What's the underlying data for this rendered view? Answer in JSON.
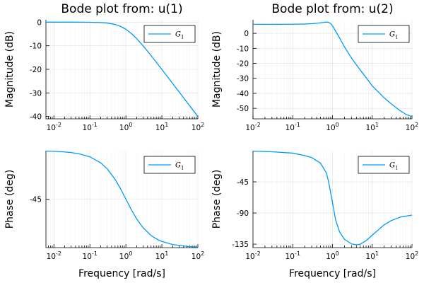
{
  "chart_data": [
    {
      "type": "line",
      "panel": "magnitude-u1",
      "title": "Bode plot from: u(1)",
      "xlabel": "",
      "ylabel": "Magnitude (dB)",
      "xscale": "log",
      "xlim": [
        0.006,
        100
      ],
      "ylim": [
        -41,
        1
      ],
      "xticks": [
        {
          "base": "10",
          "exp": "-2",
          "value": 0.01
        },
        {
          "base": "10",
          "exp": "-1",
          "value": 0.1
        },
        {
          "base": "10",
          "exp": "0",
          "value": 1
        },
        {
          "base": "10",
          "exp": "1",
          "value": 10
        },
        {
          "base": "10",
          "exp": "2",
          "value": 100
        }
      ],
      "yticks": [
        {
          "label": "0",
          "value": 0
        },
        {
          "label": "-10",
          "value": -10
        },
        {
          "label": "-20",
          "value": -20
        },
        {
          "label": "-30",
          "value": -30
        },
        {
          "label": "-40",
          "value": -40
        }
      ],
      "grid": true,
      "legend": "top-right",
      "series": [
        {
          "name_main": "G",
          "name_sub": "1",
          "color": "#009AFA",
          "points": [
            [
              0.006,
              0.0
            ],
            [
              0.01,
              0.0
            ],
            [
              0.03,
              0.0
            ],
            [
              0.1,
              -0.04
            ],
            [
              0.2,
              -0.17
            ],
            [
              0.3,
              -0.37
            ],
            [
              0.5,
              -0.97
            ],
            [
              0.7,
              -1.74
            ],
            [
              1.0,
              -3.01
            ],
            [
              1.5,
              -5.12
            ],
            [
              2.0,
              -6.99
            ],
            [
              3.0,
              -10.0
            ],
            [
              5.0,
              -14.15
            ],
            [
              7.0,
              -17.0
            ],
            [
              10.0,
              -20.04
            ],
            [
              20.0,
              -26.03
            ],
            [
              30.0,
              -29.55
            ],
            [
              50.0,
              -33.98
            ],
            [
              70.0,
              -36.9
            ],
            [
              100.0,
              -40.0
            ]
          ]
        }
      ]
    },
    {
      "type": "line",
      "panel": "magnitude-u2",
      "title": "Bode plot from: u(2)",
      "xlabel": "",
      "ylabel": "Magnitude (dB)",
      "xscale": "log",
      "xlim": [
        0.01,
        100
      ],
      "ylim": [
        -57,
        9
      ],
      "xticks": [
        {
          "base": "10",
          "exp": "-2",
          "value": 0.01
        },
        {
          "base": "10",
          "exp": "-1",
          "value": 0.1
        },
        {
          "base": "10",
          "exp": "0",
          "value": 1
        },
        {
          "base": "10",
          "exp": "1",
          "value": 10
        },
        {
          "base": "10",
          "exp": "2",
          "value": 100
        }
      ],
      "yticks": [
        {
          "label": "0",
          "value": 0
        },
        {
          "label": "-10",
          "value": -10
        },
        {
          "label": "-20",
          "value": -20
        },
        {
          "label": "-30",
          "value": -30
        },
        {
          "label": "-40",
          "value": -40
        },
        {
          "label": "-50",
          "value": -50
        }
      ],
      "grid": true,
      "legend": "top-right",
      "series": [
        {
          "name_main": "G",
          "name_sub": "1",
          "color": "#009AFA",
          "points": [
            [
              0.01,
              6.0
            ],
            [
              0.03,
              6.0
            ],
            [
              0.1,
              6.05
            ],
            [
              0.2,
              6.2
            ],
            [
              0.3,
              6.4
            ],
            [
              0.4,
              6.7
            ],
            [
              0.5,
              7.0
            ],
            [
              0.6,
              7.3
            ],
            [
              0.7,
              7.5
            ],
            [
              0.8,
              7.3
            ],
            [
              0.9,
              6.5
            ],
            [
              1.0,
              5.0
            ],
            [
              1.2,
              1.5
            ],
            [
              1.5,
              -3.0
            ],
            [
              2.0,
              -9.0
            ],
            [
              3.0,
              -16.5
            ],
            [
              5.0,
              -24.5
            ],
            [
              7.0,
              -29.5
            ],
            [
              10.0,
              -35.0
            ],
            [
              20.0,
              -43.0
            ],
            [
              30.0,
              -47.0
            ],
            [
              50.0,
              -51.5
            ],
            [
              70.0,
              -54.0
            ],
            [
              100.0,
              -55.5
            ]
          ]
        }
      ]
    },
    {
      "type": "line",
      "panel": "phase-u1",
      "title": "",
      "xlabel": "Frequency [rad/s]",
      "ylabel": "Phase (deg)",
      "xscale": "log",
      "xlim": [
        0.006,
        100
      ],
      "ylim": [
        -90,
        0
      ],
      "xticks": [
        {
          "base": "10",
          "exp": "-2",
          "value": 0.01
        },
        {
          "base": "10",
          "exp": "-1",
          "value": 0.1
        },
        {
          "base": "10",
          "exp": "0",
          "value": 1
        },
        {
          "base": "10",
          "exp": "1",
          "value": 10
        },
        {
          "base": "10",
          "exp": "2",
          "value": 100
        }
      ],
      "yticks": [
        {
          "label": "-45",
          "value": -45
        }
      ],
      "grid": true,
      "legend": "top-right",
      "series": [
        {
          "name_main": "G",
          "name_sub": "1",
          "color": "#009AFA",
          "points": [
            [
              0.006,
              -0.34
            ],
            [
              0.01,
              -0.57
            ],
            [
              0.02,
              -1.15
            ],
            [
              0.03,
              -1.72
            ],
            [
              0.05,
              -2.86
            ],
            [
              0.1,
              -5.71
            ],
            [
              0.2,
              -11.31
            ],
            [
              0.3,
              -16.7
            ],
            [
              0.5,
              -26.57
            ],
            [
              0.7,
              -34.99
            ],
            [
              1.0,
              -45.0
            ],
            [
              1.5,
              -56.31
            ],
            [
              2.0,
              -63.43
            ],
            [
              3.0,
              -71.57
            ],
            [
              5.0,
              -78.69
            ],
            [
              7.0,
              -81.87
            ],
            [
              10.0,
              -84.29
            ],
            [
              20.0,
              -87.14
            ],
            [
              50.0,
              -88.85
            ],
            [
              100.0,
              -89.43
            ]
          ]
        }
      ]
    },
    {
      "type": "line",
      "panel": "phase-u2",
      "title": "",
      "xlabel": "Frequency [rad/s]",
      "ylabel": "Phase (deg)",
      "xscale": "log",
      "xlim": [
        0.01,
        100
      ],
      "ylim": [
        -140,
        0
      ],
      "xticks": [
        {
          "base": "10",
          "exp": "-2",
          "value": 0.01
        },
        {
          "base": "10",
          "exp": "-1",
          "value": 0.1
        },
        {
          "base": "10",
          "exp": "0",
          "value": 1
        },
        {
          "base": "10",
          "exp": "1",
          "value": 10
        },
        {
          "base": "10",
          "exp": "2",
          "value": 100
        }
      ],
      "yticks": [
        {
          "label": "-45",
          "value": -45
        },
        {
          "label": "-90",
          "value": -90
        },
        {
          "label": "-135",
          "value": -135
        }
      ],
      "grid": true,
      "legend": "top-right",
      "series": [
        {
          "name_main": "G",
          "name_sub": "1",
          "color": "#009AFA",
          "points": [
            [
              0.01,
              -0.6
            ],
            [
              0.03,
              -1.5
            ],
            [
              0.1,
              -3.5
            ],
            [
              0.2,
              -7.0
            ],
            [
              0.3,
              -10.0
            ],
            [
              0.5,
              -18.0
            ],
            [
              0.7,
              -32.0
            ],
            [
              0.8,
              -45.0
            ],
            [
              1.0,
              -75.0
            ],
            [
              1.2,
              -100.0
            ],
            [
              1.5,
              -117.0
            ],
            [
              2.0,
              -128.0
            ],
            [
              3.0,
              -134.5
            ],
            [
              4.0,
              -136.0
            ],
            [
              5.0,
              -135.0
            ],
            [
              7.0,
              -130.0
            ],
            [
              10.0,
              -122.0
            ],
            [
              20.0,
              -107.0
            ],
            [
              30.0,
              -101.0
            ],
            [
              50.0,
              -96.0
            ],
            [
              100.0,
              -93.0
            ]
          ]
        }
      ]
    }
  ]
}
